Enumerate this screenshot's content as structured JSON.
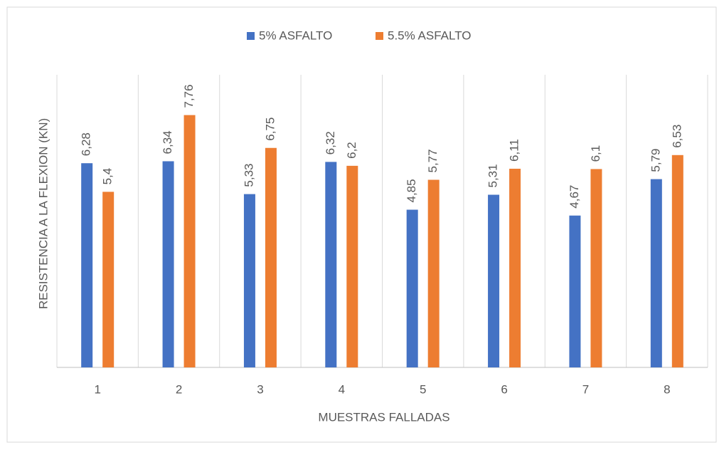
{
  "chart_data": {
    "type": "bar",
    "x_label": "MUESTRAS FALLADAS",
    "y_label": "RESISTENCIA A LA FLEXION (KN)",
    "categories": [
      "1",
      "2",
      "3",
      "4",
      "5",
      "6",
      "7",
      "8"
    ],
    "series": [
      {
        "name": "5% ASFALTO",
        "color": "#4472c4",
        "values": [
          6.28,
          6.34,
          5.33,
          6.32,
          4.85,
          5.31,
          4.67,
          5.79
        ],
        "value_labels": [
          "6,28",
          "6,34",
          "5,33",
          "6,32",
          "4,85",
          "5,31",
          "4,67",
          "5,79"
        ]
      },
      {
        "name": "5.5% ASFALTO",
        "color": "#ed7d31",
        "values": [
          5.4,
          7.76,
          6.75,
          6.2,
          5.77,
          6.11,
          6.1,
          6.53
        ],
        "value_labels": [
          "5,4",
          "7,76",
          "6,75",
          "6,2",
          "5,77",
          "6,11",
          "6,1",
          "6,53"
        ]
      }
    ],
    "ylim": [
      0,
      9
    ],
    "legend": "top"
  }
}
